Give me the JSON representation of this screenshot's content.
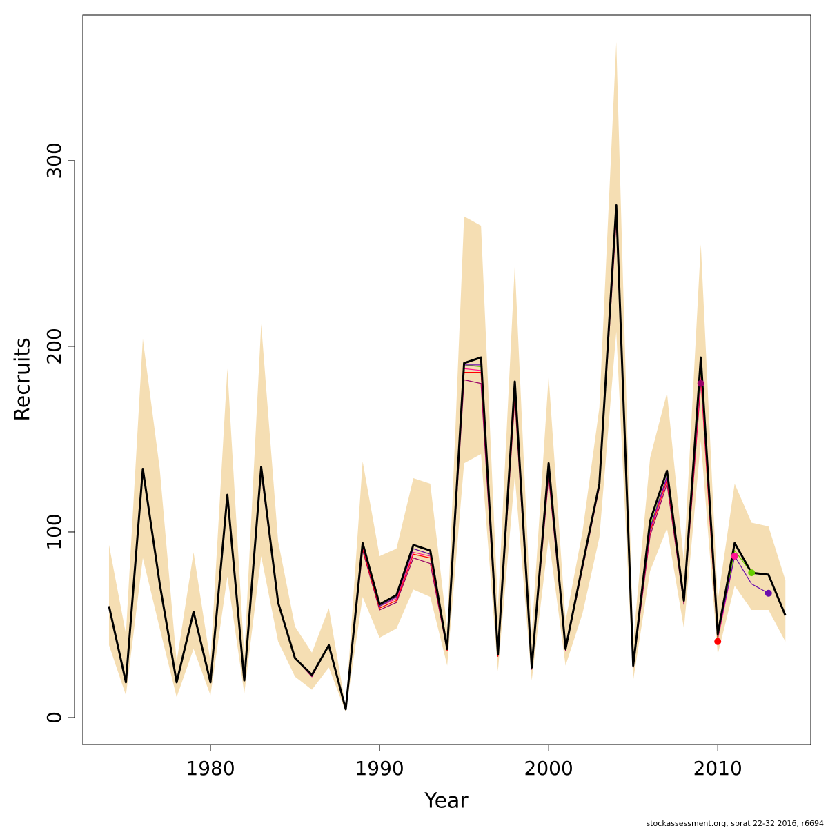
{
  "chart_data": {
    "type": "line",
    "xlabel": "Year",
    "ylabel": "Recruits",
    "caption": "stockassessment.org, sprat  22-32  2016, r6694",
    "x": [
      1974,
      1975,
      1976,
      1977,
      1978,
      1979,
      1980,
      1981,
      1982,
      1983,
      1984,
      1985,
      1986,
      1987,
      1988,
      1989,
      1990,
      1991,
      1992,
      1993,
      1994,
      1995,
      1996,
      1997,
      1998,
      1999,
      2000,
      2001,
      2002,
      2003,
      2004,
      2005,
      2006,
      2007,
      2008,
      2009,
      2010,
      2011,
      2012,
      2013,
      2014
    ],
    "xlim": [
      1972.45,
      2015.5
    ],
    "ylim": [
      -14.5,
      378.4
    ],
    "xticks": [
      1980,
      1990,
      2000,
      2010
    ],
    "yticks": [
      0,
      100,
      200,
      300
    ],
    "band": {
      "color": "#f5deb3",
      "upper": [
        93,
        45,
        204,
        134,
        30,
        89,
        30,
        188,
        33,
        212,
        95,
        49,
        35,
        59,
        5.5,
        138,
        87,
        91,
        129,
        126,
        48,
        270,
        265,
        59,
        244,
        45,
        184,
        52,
        100,
        167,
        364,
        41,
        140,
        175,
        84,
        255,
        63,
        126,
        105,
        103,
        74
      ],
      "lower": [
        39,
        12,
        86,
        48,
        11,
        37,
        12,
        76,
        13,
        87,
        41,
        22,
        15,
        27,
        3,
        65,
        43,
        48,
        69,
        65,
        28,
        137,
        142,
        25,
        130,
        20,
        97,
        28,
        56,
        97,
        208,
        20,
        79,
        102,
        48,
        149,
        34,
        71,
        58,
        58,
        41
      ]
    },
    "series": [
      {
        "color": "#990066",
        "values": [
          60,
          19,
          133,
          71,
          19,
          57,
          19,
          118,
          20,
          132,
          61,
          32,
          22,
          39,
          4.5,
          90,
          58,
          62,
          86,
          83,
          36,
          182,
          180,
          33,
          172,
          26,
          130,
          36,
          80,
          124,
          268,
          27,
          98,
          126,
          61,
          180,
          null,
          null,
          null,
          null,
          null
        ]
      },
      {
        "color": "#ff0000",
        "values": [
          60,
          19,
          134,
          72,
          19,
          57,
          19,
          119,
          20,
          133,
          62,
          32,
          23,
          39,
          4.5,
          91,
          59,
          63,
          88,
          86,
          36,
          186,
          186,
          33,
          174,
          27,
          132,
          37,
          81,
          125,
          270,
          28,
          100,
          128,
          62,
          182,
          41,
          null,
          null,
          null,
          null
        ]
      },
      {
        "color": "#ff1493",
        "values": [
          60,
          19,
          134,
          72,
          19,
          57,
          19,
          119,
          20,
          134,
          62,
          32,
          23,
          39,
          4.5,
          92,
          60,
          64,
          89,
          87,
          37,
          188,
          187,
          34,
          176,
          27,
          133,
          37,
          81,
          125,
          271,
          28,
          101,
          129,
          62,
          184,
          42,
          87,
          null,
          null,
          null
        ]
      },
      {
        "color": "#66cc00",
        "values": [
          60,
          19,
          134,
          72,
          19,
          57,
          19,
          120,
          20,
          134,
          62,
          32,
          23,
          39,
          4.5,
          93,
          60,
          65,
          91,
          88,
          37,
          190,
          189,
          34,
          178,
          27,
          134,
          37,
          82,
          126,
          272,
          28,
          103,
          130,
          63,
          188,
          43,
          90,
          78,
          null,
          null
        ]
      },
      {
        "color": "#6a0dad",
        "values": [
          60,
          19,
          134,
          72,
          19,
          57,
          19,
          120,
          20,
          135,
          62,
          32,
          23,
          39,
          4.5,
          93,
          60,
          65,
          91,
          88,
          37,
          190,
          190,
          34,
          178,
          27,
          134,
          37,
          82,
          126,
          272,
          28,
          102,
          130,
          63,
          190,
          44,
          87,
          72,
          67,
          null
        ]
      },
      {
        "color": "#000000",
        "values": [
          60,
          19,
          134,
          72,
          19,
          57,
          19,
          120,
          20,
          135,
          62,
          32,
          23,
          39,
          4.5,
          94,
          61,
          66,
          93,
          90,
          37,
          191,
          194,
          34,
          181,
          27,
          137,
          37,
          82,
          126,
          276,
          28,
          106,
          133,
          63,
          194,
          45,
          94,
          78,
          77,
          55
        ]
      }
    ]
  }
}
